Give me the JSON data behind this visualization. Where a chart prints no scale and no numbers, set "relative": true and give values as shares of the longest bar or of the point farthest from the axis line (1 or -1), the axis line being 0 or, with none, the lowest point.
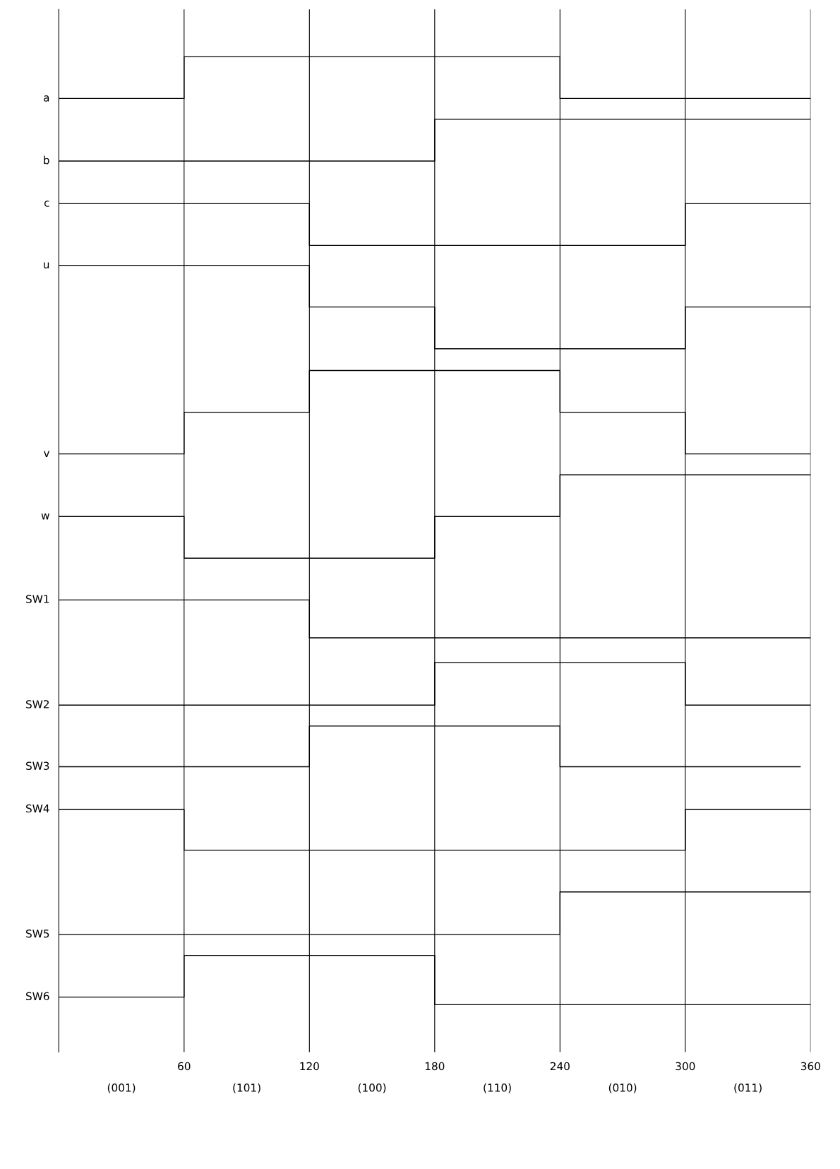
{
  "chart_data": {
    "type": "step",
    "relative": true,
    "xlim": [
      0,
      360
    ],
    "xticks": [
      60,
      120,
      180,
      240,
      300,
      360
    ],
    "annotations": [
      "(001)",
      "(101)",
      "(100)",
      "(110)",
      "(010)",
      "(011)"
    ],
    "grid": "x",
    "legend": false,
    "marker": "none",
    "line_style": "solid",
    "series": [
      {
        "name": "a",
        "color": "#000000",
        "x": [
          0,
          60,
          240,
          360
        ],
        "values": [
          0.956,
          1.0,
          0.956,
          0.956
        ]
      },
      {
        "name": "b",
        "color": "#000000",
        "x": [
          0,
          180,
          360
        ],
        "values": [
          0.89,
          0.934,
          0.934
        ]
      },
      {
        "name": "c",
        "color": "#000000",
        "x": [
          0,
          120,
          300,
          360
        ],
        "values": [
          0.845,
          0.801,
          0.845,
          0.845
        ]
      },
      {
        "name": "u",
        "color": "#000000",
        "x": [
          0,
          120,
          180,
          300,
          360
        ],
        "values": [
          0.78,
          0.736,
          0.692,
          0.736,
          0.736
        ]
      },
      {
        "name": "v",
        "color": "#000000",
        "x": [
          0,
          60,
          120,
          240,
          300,
          360
        ],
        "values": [
          0.581,
          0.625,
          0.669,
          0.625,
          0.581,
          0.581
        ]
      },
      {
        "name": "w",
        "color": "#000000",
        "x": [
          0,
          60,
          180,
          240,
          360
        ],
        "values": [
          0.515,
          0.471,
          0.515,
          0.559,
          0.559
        ]
      },
      {
        "name": "SW1",
        "color": "#000000",
        "x": [
          0,
          120,
          360
        ],
        "values": [
          0.427,
          0.387,
          0.387
        ]
      },
      {
        "name": "SW2",
        "color": "#000000",
        "x": [
          0,
          180,
          300,
          360
        ],
        "values": [
          0.316,
          0.361,
          0.316,
          0.316
        ]
      },
      {
        "name": "SW3",
        "color": "#000000",
        "x": [
          0,
          120,
          240,
          355
        ],
        "values": [
          0.251,
          0.294,
          0.251,
          0.251
        ]
      },
      {
        "name": "SW4",
        "color": "#000000",
        "x": [
          0,
          60,
          300,
          360
        ],
        "values": [
          0.206,
          0.163,
          0.206,
          0.206
        ]
      },
      {
        "name": "SW5",
        "color": "#000000",
        "x": [
          0,
          240,
          360
        ],
        "values": [
          0.074,
          0.119,
          0.119
        ]
      },
      {
        "name": "SW6",
        "color": "#000000",
        "x": [
          0,
          60,
          180,
          360
        ],
        "values": [
          0.008,
          0.052,
          0,
          0
        ]
      }
    ]
  }
}
